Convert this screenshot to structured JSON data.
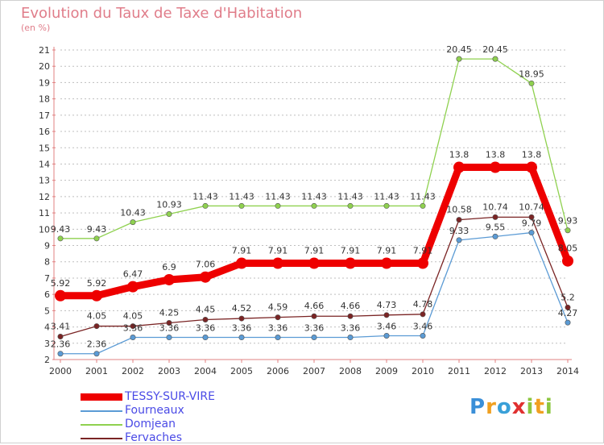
{
  "title": "Evolution du Taux de Taxe d'Habitation",
  "unit": "(en %)",
  "logo": "Proxiti",
  "colors": {
    "axis": "#e08080",
    "grid": "#bfbfbf",
    "label": "#333333"
  },
  "chart_data": {
    "type": "line",
    "title": "Evolution du Taux de Taxe d'Habitation",
    "ylabel": "(en %)",
    "xlabel": "",
    "ylim": [
      2,
      21
    ],
    "yticks": [
      2,
      3,
      4,
      5,
      6,
      7,
      8,
      9,
      10,
      11,
      12,
      13,
      14,
      15,
      16,
      17,
      18,
      19,
      20,
      21
    ],
    "grid": "horizontal",
    "legend": "bottom-left",
    "x": [
      "2000",
      "2001",
      "2002",
      "2003",
      "2004",
      "2005",
      "2006",
      "2007",
      "2008",
      "2009",
      "2010",
      "2011",
      "2012",
      "2013",
      "2014"
    ],
    "series": [
      {
        "name": "TESSY-SUR-VIRE",
        "color": "#ee0000",
        "values": [
          5.92,
          5.92,
          6.47,
          6.9,
          7.06,
          7.91,
          7.91,
          7.91,
          7.91,
          7.91,
          7.91,
          13.8,
          13.8,
          13.8,
          8.05
        ],
        "labels": [
          "5.92",
          "5.92",
          "6.47",
          "6.9",
          "7.06",
          "7.91",
          "7.91",
          "7.91",
          "7.91",
          "7.91",
          "7.91",
          "13.8",
          "13.8",
          "13.8",
          "8.05"
        ]
      },
      {
        "name": "Fourneaux",
        "color": "#5b9bd5",
        "values": [
          2.36,
          2.36,
          3.36,
          3.36,
          3.36,
          3.36,
          3.36,
          3.36,
          3.36,
          3.46,
          3.46,
          9.33,
          9.55,
          9.79,
          4.27
        ],
        "labels": [
          "2.36",
          "2.36",
          "3.36",
          "3.36",
          "3.36",
          "3.36",
          "3.36",
          "3.36",
          "3.36",
          "3.46",
          "3.46",
          "9.33",
          "9.55",
          "9.79",
          "4.27"
        ]
      },
      {
        "name": "Domjean",
        "color": "#8fd14f",
        "values": [
          9.43,
          9.43,
          10.43,
          10.93,
          11.43,
          11.43,
          11.43,
          11.43,
          11.43,
          11.43,
          11.43,
          20.45,
          20.45,
          18.95,
          9.93
        ],
        "labels": [
          "9.43",
          "9.43",
          "10.43",
          "10.93",
          "11.43",
          "11.43",
          "11.43",
          "11.43",
          "11.43",
          "11.43",
          "11.43",
          "20.45",
          "20.45",
          "18.95",
          "9.93"
        ]
      },
      {
        "name": "Fervaches",
        "color": "#7a2424",
        "values": [
          3.41,
          4.05,
          4.05,
          4.25,
          4.45,
          4.52,
          4.59,
          4.66,
          4.66,
          4.73,
          4.78,
          10.58,
          10.74,
          10.74,
          5.2
        ],
        "labels": [
          "3.41",
          "4.05",
          "4.05",
          "4.25",
          "4.45",
          "4.52",
          "4.59",
          "4.66",
          "4.66",
          "4.73",
          "4.78",
          "10.58",
          "10.74",
          "10.74",
          "5.2"
        ]
      }
    ]
  }
}
